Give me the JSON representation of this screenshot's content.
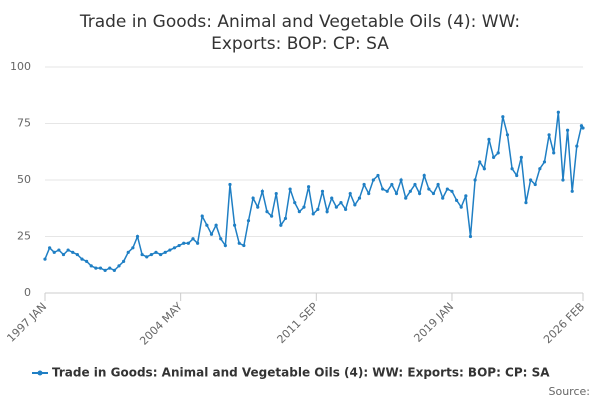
{
  "chart_data": {
    "type": "line",
    "title": "Trade in Goods: Animal and Vegetable Oils (4): WW: Exports: BOP: CP: SA",
    "source": "Source:",
    "x": [
      "1997-01",
      "1997-04",
      "1997-07",
      "1997-10",
      "1998-01",
      "1998-04",
      "1998-07",
      "1998-10",
      "1999-01",
      "1999-04",
      "1999-07",
      "1999-10",
      "2000-01",
      "2000-04",
      "2000-07",
      "2000-10",
      "2001-01",
      "2001-04",
      "2001-07",
      "2001-10",
      "2002-01",
      "2002-04",
      "2002-07",
      "2002-10",
      "2003-01",
      "2003-04",
      "2003-07",
      "2003-10",
      "2004-01",
      "2004-04",
      "2004-07",
      "2004-10",
      "2005-01",
      "2005-04",
      "2005-07",
      "2005-10",
      "2006-01",
      "2006-04",
      "2006-07",
      "2006-10",
      "2007-01",
      "2007-04",
      "2007-07",
      "2007-10",
      "2008-01",
      "2008-04",
      "2008-07",
      "2008-10",
      "2009-01",
      "2009-04",
      "2009-07",
      "2009-10",
      "2010-01",
      "2010-04",
      "2010-07",
      "2010-10",
      "2011-01",
      "2011-04",
      "2011-07",
      "2011-10",
      "2012-01",
      "2012-04",
      "2012-07",
      "2012-10",
      "2013-01",
      "2013-04",
      "2013-07",
      "2013-10",
      "2014-01",
      "2014-04",
      "2014-07",
      "2014-10",
      "2015-01",
      "2015-04",
      "2015-07",
      "2015-10",
      "2016-01",
      "2016-04",
      "2016-07",
      "2016-10",
      "2017-01",
      "2017-04",
      "2017-07",
      "2017-10",
      "2018-01",
      "2018-04",
      "2018-07",
      "2018-10",
      "2019-01",
      "2019-04",
      "2019-07",
      "2019-10",
      "2020-01",
      "2020-04",
      "2020-07",
      "2020-10",
      "2021-01",
      "2021-04",
      "2021-07",
      "2021-10",
      "2022-01",
      "2022-04",
      "2022-07",
      "2022-10",
      "2023-01",
      "2023-04",
      "2023-07",
      "2023-10",
      "2024-01",
      "2024-04",
      "2024-07",
      "2024-10",
      "2025-01",
      "2025-04",
      "2025-07",
      "2025-10",
      "2026-01",
      "2026-02"
    ],
    "series": [
      {
        "name": "Trade in Goods: Animal and Vegetable Oils (4): WW: Exports: BOP: CP: SA",
        "color": "#1f7fc4",
        "values": [
          15,
          20,
          18,
          19,
          17,
          19,
          18,
          17,
          15,
          14,
          12,
          11,
          11,
          10,
          11,
          10,
          12,
          14,
          18,
          20,
          25,
          17,
          16,
          17,
          18,
          17,
          18,
          19,
          20,
          21,
          22,
          22,
          24,
          22,
          34,
          30,
          26,
          30,
          24,
          21,
          48,
          30,
          22,
          21,
          32,
          42,
          38,
          45,
          36,
          34,
          44,
          30,
          33,
          46,
          40,
          36,
          38,
          47,
          35,
          37,
          45,
          36,
          42,
          38,
          40,
          37,
          44,
          39,
          42,
          48,
          44,
          50,
          52,
          46,
          45,
          48,
          44,
          50,
          42,
          45,
          48,
          44,
          52,
          46,
          44,
          48,
          42,
          46,
          45,
          41,
          38,
          43,
          25,
          50,
          58,
          55,
          68,
          60,
          62,
          78,
          70,
          55,
          52,
          60,
          40,
          50,
          48,
          55,
          58,
          70,
          62,
          80,
          50,
          72,
          45,
          65,
          74,
          73
        ]
      }
    ],
    "ylim": [
      0,
      100
    ],
    "yticks": [
      0,
      25,
      50,
      75,
      100
    ],
    "xticks": [
      {
        "value": "1997-01",
        "label": "1997 JAN"
      },
      {
        "value": "2004-05",
        "label": "2004 MAY"
      },
      {
        "value": "2011-09",
        "label": "2011 SEP"
      },
      {
        "value": "2019-01",
        "label": "2019 JAN"
      },
      {
        "value": "2026-02",
        "label": "2026 FEB"
      }
    ],
    "grid": true
  }
}
